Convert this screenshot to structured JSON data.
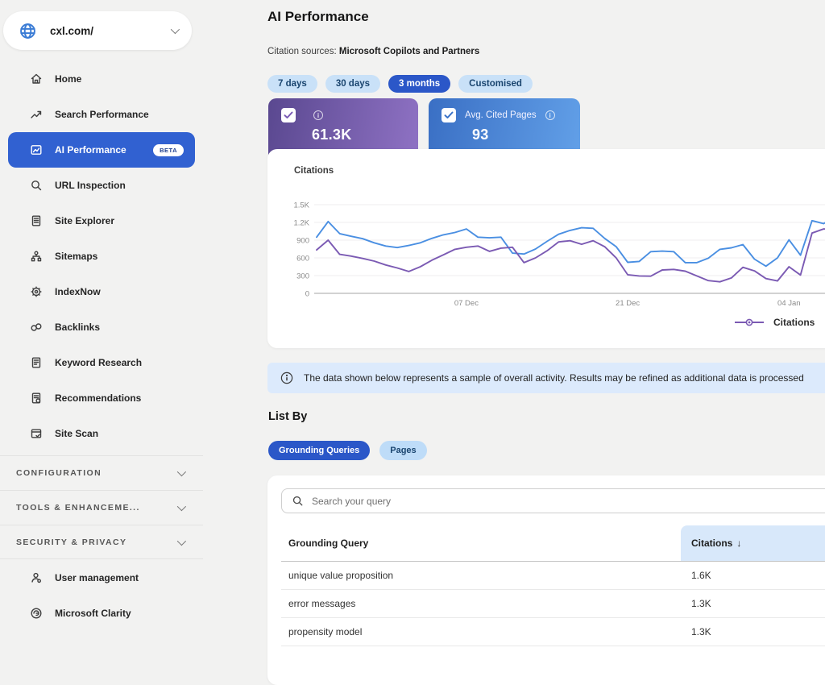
{
  "sidebar": {
    "site": {
      "domain": "cxl.com/",
      "icon": "globe-icon"
    },
    "items": [
      {
        "label": "Home",
        "icon": "home-icon"
      },
      {
        "label": "Search Performance",
        "icon": "trend-icon"
      },
      {
        "label": "AI Performance",
        "icon": "ai-performance-icon",
        "badge": "BETA",
        "active": true
      },
      {
        "label": "URL Inspection",
        "icon": "magnifier-icon"
      },
      {
        "label": "Site Explorer",
        "icon": "document-icon"
      },
      {
        "label": "Sitemaps",
        "icon": "sitemap-icon"
      },
      {
        "label": "IndexNow",
        "icon": "gear-icon"
      },
      {
        "label": "Backlinks",
        "icon": "link-icon"
      },
      {
        "label": "Keyword Research",
        "icon": "document-icon"
      },
      {
        "label": "Recommendations",
        "icon": "document-check-icon"
      },
      {
        "label": "Site Scan",
        "icon": "browser-icon"
      }
    ],
    "sections": [
      {
        "label": "CONFIGURATION"
      },
      {
        "label": "TOOLS & ENHANCEME..."
      },
      {
        "label": "SECURITY & PRIVACY"
      }
    ],
    "footer_items": [
      {
        "label": "User management",
        "icon": "user-icon"
      },
      {
        "label": "Microsoft Clarity",
        "icon": "clarity-icon"
      }
    ]
  },
  "header": {
    "title": "AI Performance",
    "sources_label": "Citation sources:",
    "sources_value": "Microsoft Copilots and Partners"
  },
  "time_filters": {
    "options": [
      "7 days",
      "30 days",
      "3 months",
      "Customised"
    ],
    "selected": "3 months"
  },
  "metric_cards": [
    {
      "label": "",
      "value": "61.3K",
      "checked": true,
      "accent": "#7a5bb5"
    },
    {
      "label": "Avg. Cited Pages",
      "value": "93",
      "checked": true,
      "accent": "#3a72c8"
    }
  ],
  "chart_data": {
    "type": "line",
    "title": "Citations",
    "xlabel": "",
    "ylabel": "",
    "ylim": [
      0,
      1500
    ],
    "grid": true,
    "yticks": [
      {
        "v": 0,
        "label": "0"
      },
      {
        "v": 300,
        "label": "300"
      },
      {
        "v": 600,
        "label": "600"
      },
      {
        "v": 900,
        "label": "900"
      },
      {
        "v": 1200,
        "label": "1.2K"
      },
      {
        "v": 1500,
        "label": "1.5K"
      }
    ],
    "xticks": [
      {
        "index": 13,
        "label": "07 Dec"
      },
      {
        "index": 27,
        "label": "21 Dec"
      },
      {
        "index": 41,
        "label": "04 Jan"
      }
    ],
    "series": [
      {
        "name": "",
        "color": "#4a8fe2",
        "values": [
          950,
          1215,
          1010,
          965,
          925,
          855,
          800,
          775,
          810,
          855,
          930,
          990,
          1030,
          1090,
          950,
          940,
          950,
          680,
          665,
          750,
          880,
          1000,
          1065,
          1110,
          1100,
          930,
          790,
          525,
          540,
          705,
          715,
          705,
          520,
          520,
          595,
          745,
          770,
          825,
          580,
          460,
          600,
          905,
          645,
          1230,
          1180,
          1285,
          1100
        ]
      },
      {
        "name": "Citations",
        "color": "#7b5ab3",
        "values": [
          735,
          900,
          660,
          630,
          590,
          545,
          480,
          430,
          370,
          450,
          560,
          650,
          745,
          780,
          800,
          710,
          765,
          780,
          520,
          600,
          720,
          870,
          890,
          830,
          890,
          790,
          600,
          315,
          295,
          290,
          395,
          405,
          375,
          295,
          215,
          195,
          260,
          440,
          380,
          250,
          210,
          450,
          310,
          1020,
          1090,
          1080,
          1080
        ]
      }
    ],
    "legend": [
      {
        "label": "Citations",
        "color": "#7b5ab3"
      }
    ],
    "legend_position": "bottom-right"
  },
  "info_banner": {
    "text": "The data shown below represents a sample of overall activity. Results may be refined as additional data is processed"
  },
  "list_by": {
    "title": "List By",
    "options": [
      "Grounding Queries",
      "Pages"
    ],
    "selected": "Grounding Queries"
  },
  "query_table": {
    "search_placeholder": "Search your query",
    "columns": [
      "Grounding Query",
      "Citations"
    ],
    "sort": {
      "column": "Citations",
      "direction": "desc"
    },
    "rows": [
      {
        "query": "unique value proposition",
        "citations": "1.6K"
      },
      {
        "query": "error messages",
        "citations": "1.3K"
      },
      {
        "query": "propensity model",
        "citations": "1.3K"
      }
    ]
  }
}
